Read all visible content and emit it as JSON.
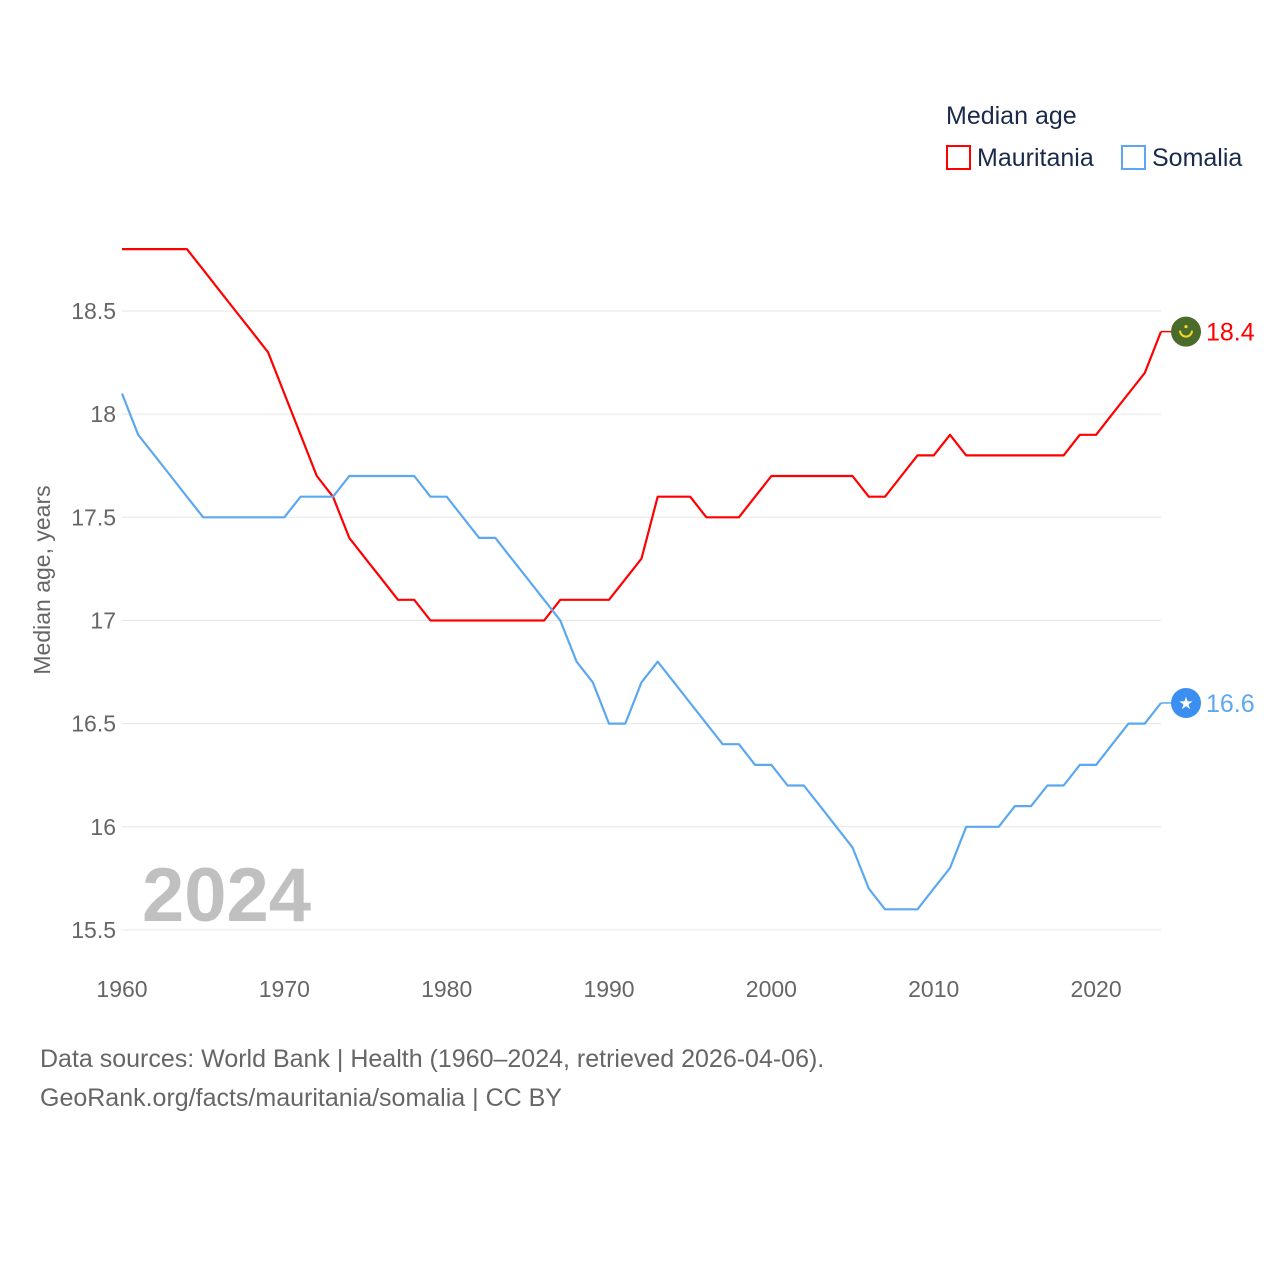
{
  "chart_data": {
    "type": "line",
    "title": "",
    "legend_title": "Median age",
    "legend_placement": "top-right",
    "xlabel": "",
    "ylabel": "Median age, years",
    "xlim": [
      1960,
      2024
    ],
    "ylim": [
      15.5,
      18.8
    ],
    "grid": true,
    "x_ticks": [
      1960,
      1970,
      1980,
      1990,
      2000,
      2010,
      2020
    ],
    "y_ticks": [
      15.5,
      16,
      16.5,
      17,
      17.5,
      18,
      18.5
    ],
    "year_label": "2024",
    "x_start": 1960,
    "series": [
      {
        "name": "Mauritania",
        "color": "#ff0000",
        "end_label": "18.4",
        "flag_icon": "mauritania-flag-icon",
        "flag_color": "#4a6b2a",
        "values": [
          18.8,
          18.8,
          18.8,
          18.8,
          18.8,
          18.7,
          18.6,
          18.5,
          18.4,
          18.3,
          18.1,
          17.9,
          17.7,
          17.6,
          17.4,
          17.3,
          17.2,
          17.1,
          17.1,
          17.0,
          17.0,
          17.0,
          17.0,
          17.0,
          17.0,
          17.0,
          17.0,
          17.1,
          17.1,
          17.1,
          17.1,
          17.2,
          17.3,
          17.6,
          17.6,
          17.6,
          17.5,
          17.5,
          17.5,
          17.6,
          17.7,
          17.7,
          17.7,
          17.7,
          17.7,
          17.7,
          17.6,
          17.6,
          17.7,
          17.8,
          17.8,
          17.9,
          17.8,
          17.8,
          17.8,
          17.8,
          17.8,
          17.8,
          17.8,
          17.9,
          17.9,
          18.0,
          18.1,
          18.2,
          18.4
        ]
      },
      {
        "name": "Somalia",
        "color": "#5ca8f0",
        "end_label": "16.6",
        "flag_icon": "somalia-flag-icon",
        "flag_color": "#3b8ff0",
        "values": [
          18.1,
          17.9,
          17.8,
          17.7,
          17.6,
          17.5,
          17.5,
          17.5,
          17.5,
          17.5,
          17.5,
          17.6,
          17.6,
          17.6,
          17.7,
          17.7,
          17.7,
          17.7,
          17.7,
          17.6,
          17.6,
          17.5,
          17.4,
          17.4,
          17.3,
          17.2,
          17.1,
          17.0,
          16.8,
          16.7,
          16.5,
          16.5,
          16.7,
          16.8,
          16.7,
          16.6,
          16.5,
          16.4,
          16.4,
          16.3,
          16.3,
          16.2,
          16.2,
          16.1,
          16.0,
          15.9,
          15.7,
          15.6,
          15.6,
          15.6,
          15.7,
          15.8,
          16.0,
          16.0,
          16.0,
          16.1,
          16.1,
          16.2,
          16.2,
          16.3,
          16.3,
          16.4,
          16.5,
          16.5,
          16.6
        ]
      }
    ]
  },
  "footer": {
    "line1": "Data sources: World Bank | Health (1960–2024, retrieved 2026-04-06).",
    "line2": "GeoRank.org/facts/mauritania/somalia | CC BY"
  }
}
